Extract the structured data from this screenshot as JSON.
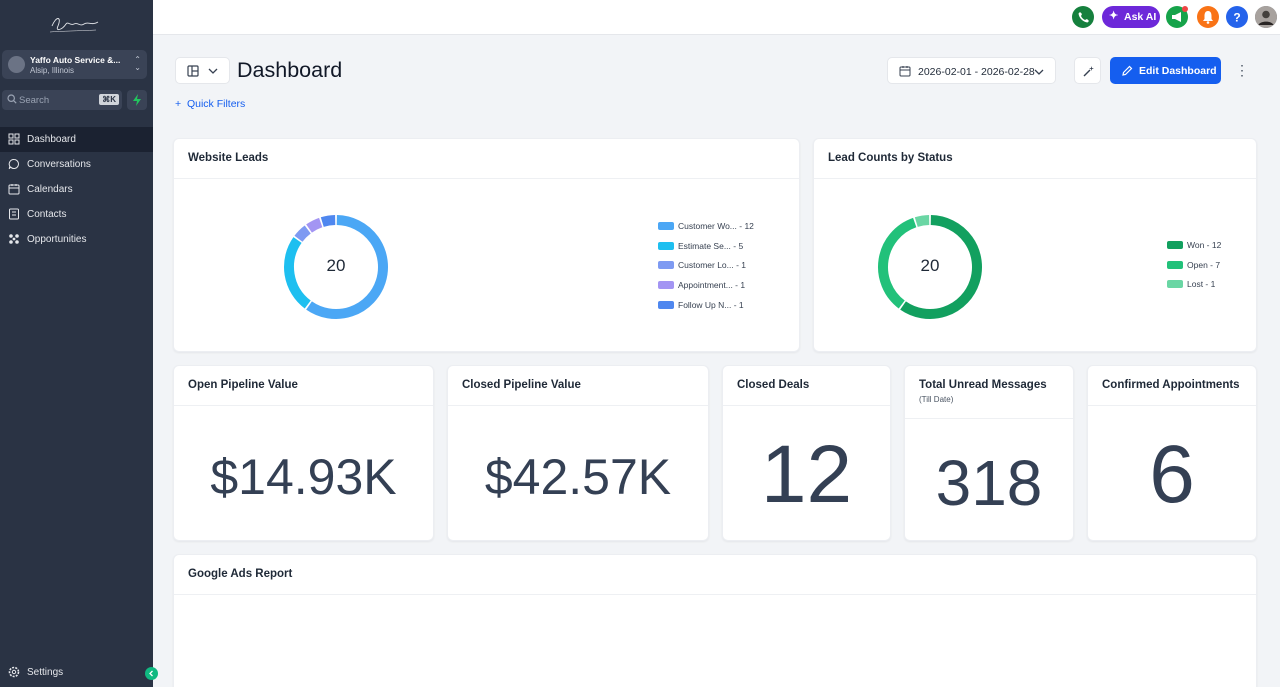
{
  "sidebar": {
    "account": {
      "name": "Yaffo Auto Service &...",
      "location": "Alsip, Illinois"
    },
    "search": {
      "placeholder": "Search",
      "shortcut": "⌘K"
    },
    "nav": [
      {
        "label": "Dashboard",
        "icon": "dashboard-icon",
        "active": true
      },
      {
        "label": "Conversations",
        "icon": "chat-icon"
      },
      {
        "label": "Calendars",
        "icon": "calendar-icon"
      },
      {
        "label": "Contacts",
        "icon": "contacts-icon"
      },
      {
        "label": "Opportunities",
        "icon": "opportunities-icon"
      }
    ],
    "settings_label": "Settings"
  },
  "topbar": {
    "ask_ai_label": "Ask AI"
  },
  "header": {
    "title": "Dashboard",
    "quick_filters": "Quick Filters",
    "date_range": "2026-02-01 - 2026-02-28",
    "edit_label": "Edit Dashboard"
  },
  "colors": {
    "accent": "#155eef",
    "sidebar_bg": "#2a3344",
    "won": "#12a05f",
    "open": "#22c17a",
    "lost": "#6ad6a4"
  },
  "widgets": {
    "website_leads": {
      "title": "Website Leads",
      "total": "20",
      "legend": [
        {
          "label": "Customer Wo... - 12",
          "value": 12,
          "color": "#4ba7f5"
        },
        {
          "label": "Estimate Se... - 5",
          "value": 5,
          "color": "#1ebff0"
        },
        {
          "label": "Customer Lo... - 1",
          "value": 1,
          "color": "#7e9af2"
        },
        {
          "label": "Appointment... - 1",
          "value": 1,
          "color": "#a395f3"
        },
        {
          "label": "Follow Up N... - 1",
          "value": 1,
          "color": "#4f87ef"
        }
      ]
    },
    "lead_status": {
      "title": "Lead Counts by Status",
      "total": "20",
      "legend": [
        {
          "label": "Won - 12",
          "value": 12,
          "color": "#12a05f"
        },
        {
          "label": "Open - 7",
          "value": 7,
          "color": "#22c17a"
        },
        {
          "label": "Lost - 1",
          "value": 1,
          "color": "#6ad6a4"
        }
      ]
    },
    "open_pipeline": {
      "title": "Open Pipeline Value",
      "value": "$14.93K"
    },
    "closed_pipeline": {
      "title": "Closed Pipeline Value",
      "value": "$42.57K"
    },
    "closed_deals": {
      "title": "Closed Deals",
      "value": "12"
    },
    "unread_messages": {
      "title": "Total Unread Messages",
      "subtitle": "(Till Date)",
      "value": "318"
    },
    "confirmed_appointments": {
      "title": "Confirmed Appointments",
      "value": "6"
    },
    "google_ads": {
      "title": "Google Ads Report"
    }
  }
}
